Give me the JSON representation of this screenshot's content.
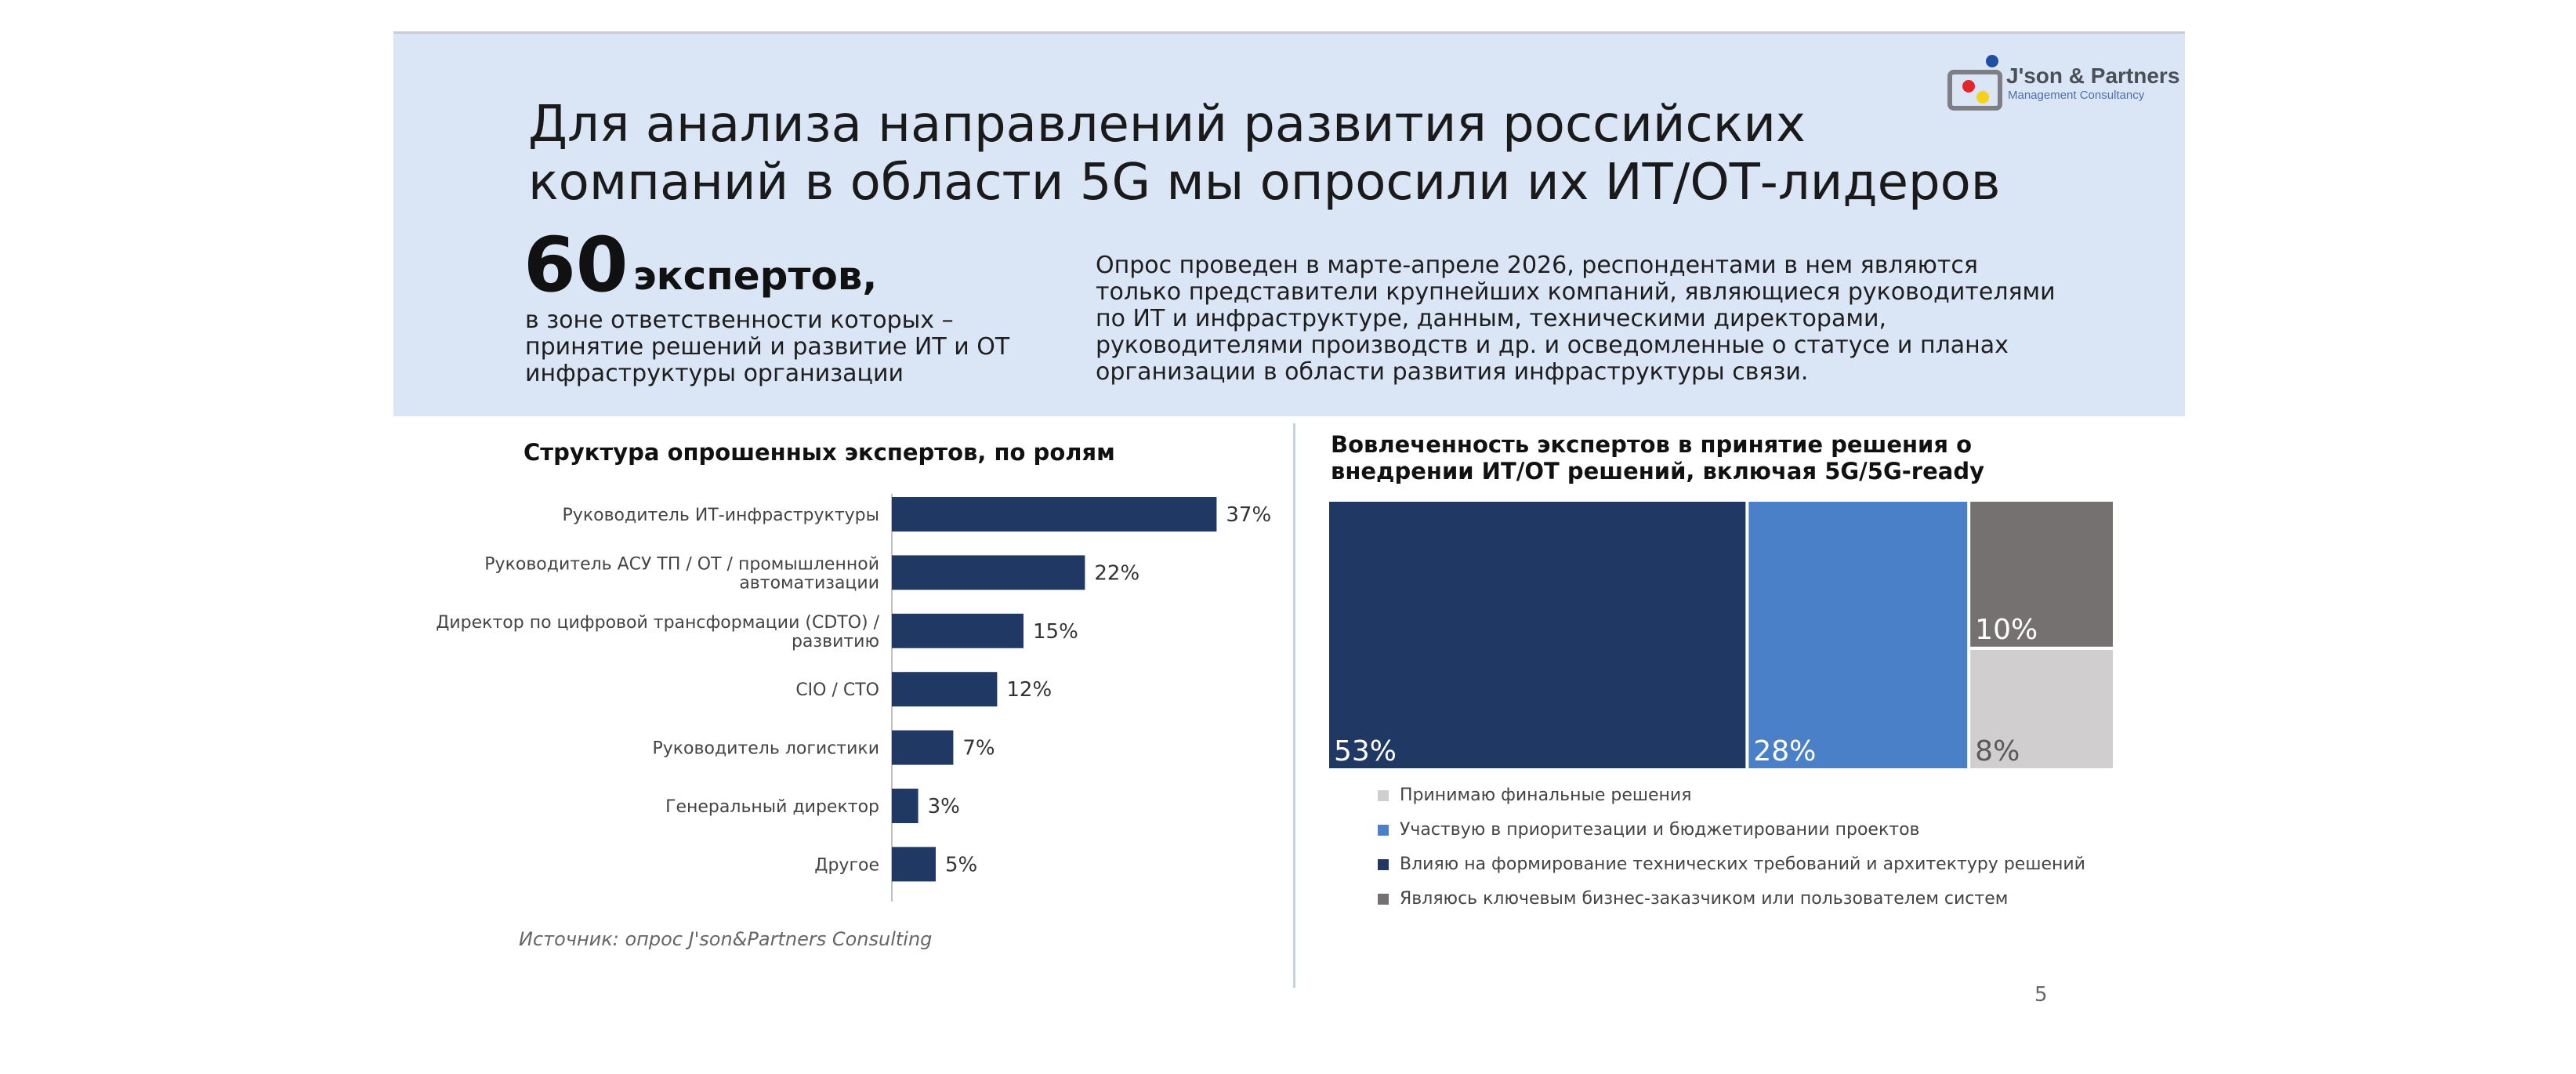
{
  "header": {
    "title_line1": "Для анализа направлений развития российских",
    "title_line2": "компаний в области 5G мы опросили их ИТ/ОТ-лидеров",
    "experts_number": "60",
    "experts_unit": "экспертов,",
    "experts_desc_line1": "в зоне ответственности которых –",
    "experts_desc_line2": "принятие решений и развитие ИТ и ОТ",
    "experts_desc_line3": "инфраструктуры организации",
    "survey_line1": "Опрос проведен в марте-апреле  2026, респондентами в нем являются",
    "survey_line2": "только представители крупнейших компаний, являющиеся руководителями",
    "survey_line3": "по ИТ и инфраструктуре, данным, техническими директорами,",
    "survey_line4": "руководителями производств и др. и осведомленные о статусе и планах",
    "survey_line5": "организации в области развития инфраструктуры связи."
  },
  "logo": {
    "text": "J'son & Partners",
    "subtext": "Management Consultancy",
    "colors": {
      "red": "#e3262b",
      "yellow": "#f4d21a",
      "blue": "#1f4fa3",
      "gray": "#7d7f84"
    }
  },
  "footer": {
    "source": "Источник: опрос J'son&Partners Consulting",
    "page_number": "5"
  },
  "chart_data": [
    {
      "type": "bar",
      "orientation": "horizontal",
      "title": "Структура опрошенных экспертов, по ролям",
      "categories": [
        "Руководитель ИТ-инфраструктуры",
        "Руководитель АСУ ТП / ОТ / промышленной автоматизации",
        "Директор по цифровой трансформации (CDTO) / развитию",
        "CIO / CTO",
        "Руководитель логистики",
        "Генеральный директор",
        "Другое"
      ],
      "category_lines": [
        [
          "Руководитель ИТ-инфраструктуры"
        ],
        [
          "Руководитель АСУ ТП / ОТ / промышленной",
          "автоматизации"
        ],
        [
          "Директор по цифровой трансформации (CDTO) /",
          "развитию"
        ],
        [
          "CIO / CTO"
        ],
        [
          "Руководитель логистики"
        ],
        [
          "Генеральный директор"
        ],
        [
          "Другое"
        ]
      ],
      "values": [
        37,
        22,
        15,
        12,
        7,
        3,
        5
      ],
      "value_labels": [
        "37%",
        "22%",
        "15%",
        "12%",
        "7%",
        "3%",
        "5%"
      ],
      "unit": "%",
      "bar_color": "#1f3864",
      "grid": false
    },
    {
      "type": "treemap",
      "title": "Вовлеченность экспертов в принятие решения о внедрении ИТ/ОТ решений, включая 5G/5G-ready",
      "title_lines": [
        "Вовлеченность экспертов в принятие решения о",
        "внедрении ИТ/ОТ решений, включая 5G/5G-ready"
      ],
      "series": [
        {
          "name": "Влияю на формирование технических требований и архитектуру решений",
          "value": 53,
          "label": "53%",
          "color": "#1f3864"
        },
        {
          "name": "Участвую в приоритезации и бюджетировании проектов",
          "value": 28,
          "label": "28%",
          "color": "#4a80c8"
        },
        {
          "name": "Являюсь ключевым бизнес-заказчиком или пользователем систем",
          "value": 10,
          "label": "10%",
          "color": "#767171"
        },
        {
          "name": "Принимаю финальные решения",
          "value": 8,
          "label": "8%",
          "color": "#d0cece"
        }
      ],
      "legend": [
        {
          "label": "Принимаю финальные решения",
          "color": "#d0cece"
        },
        {
          "label": "Участвую в приоритезации и бюджетировании проектов",
          "color": "#4a80c8"
        },
        {
          "label": "Влияю на формирование технических требований и архитектуру решений",
          "color": "#1f3864"
        },
        {
          "label": "Являюсь ключевым бизнес-заказчиком или пользователем систем",
          "color": "#767171"
        }
      ],
      "legend_position": "bottom"
    }
  ]
}
